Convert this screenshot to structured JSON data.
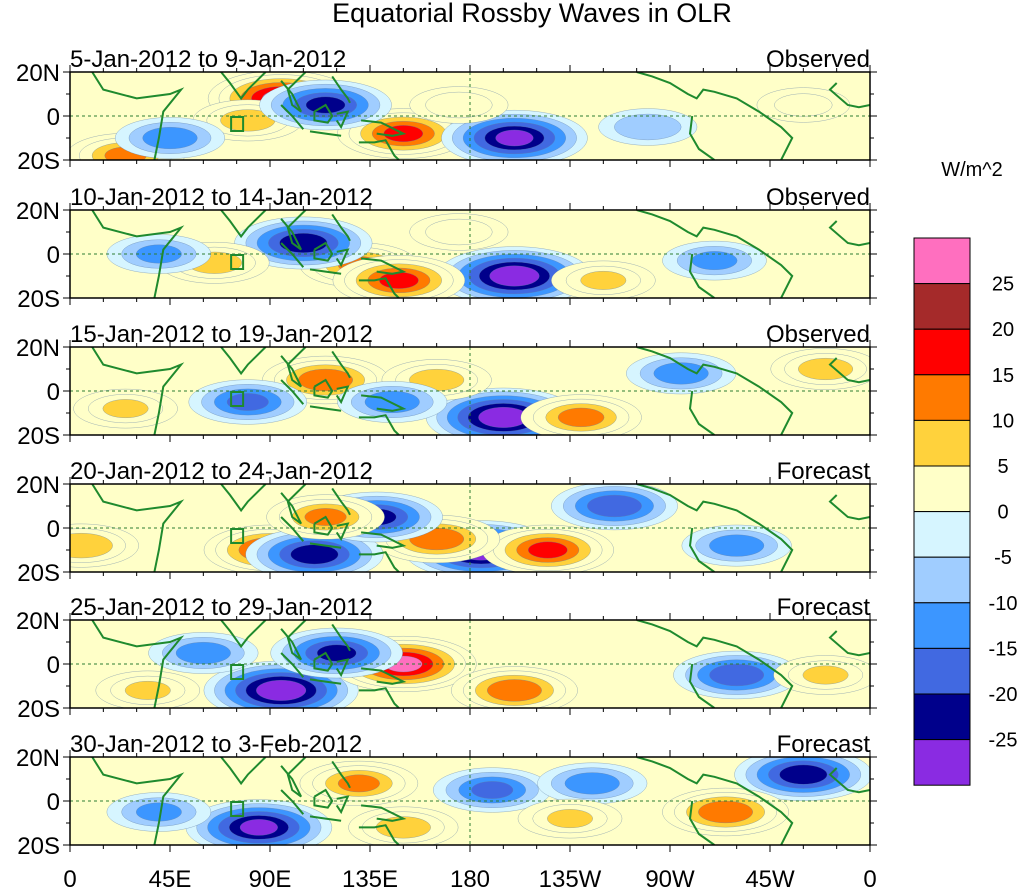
{
  "chart_data": {
    "type": "heatmap",
    "title": "Equatorial Rossby Waves in OLR",
    "units": "W/m^2",
    "x_ticks": [
      "0",
      "45E",
      "90E",
      "135E",
      "180",
      "135W",
      "90W",
      "45W",
      "0"
    ],
    "y_ticks": [
      "20N",
      "0",
      "20S"
    ],
    "colorbar_levels": [
      "25",
      "20",
      "15",
      "10",
      "5",
      "0",
      "-5",
      "-10",
      "-15",
      "-20",
      "-25"
    ],
    "colorbar_colors": [
      "#ff6fbf",
      "#a52a2a",
      "#ff0000",
      "#ff7a00",
      "#ffd23c",
      "#ffffc8",
      "#d6f5ff",
      "#a0cdff",
      "#3c96ff",
      "#4169e1",
      "#00008b",
      "#8a2be2"
    ],
    "panels": [
      {
        "period": "5-Jan-2012 to 9-Jan-2012",
        "kind": "Observed",
        "anomalies": [
          {
            "lon": 95,
            "lat": 8,
            "value": 25
          },
          {
            "lon": 80,
            "lat": -2,
            "value": 12
          },
          {
            "lon": 150,
            "lat": -8,
            "value": 20
          },
          {
            "lon": 25,
            "lat": -18,
            "value": 15
          },
          {
            "lon": 200,
            "lat": -10,
            "value": -25
          },
          {
            "lon": 115,
            "lat": 5,
            "value": -20
          },
          {
            "lon": 45,
            "lat": -10,
            "value": -12
          },
          {
            "lon": 260,
            "lat": -5,
            "value": -8
          },
          {
            "lon": 175,
            "lat": 5,
            "value": 8
          },
          {
            "lon": 330,
            "lat": 5,
            "value": 6
          }
        ]
      },
      {
        "period": "10-Jan-2012 to 14-Jan-2012",
        "kind": "Observed",
        "anomalies": [
          {
            "lon": 200,
            "lat": -10,
            "value": -28
          },
          {
            "lon": 130,
            "lat": -5,
            "value": 15
          },
          {
            "lon": 148,
            "lat": -12,
            "value": 20
          },
          {
            "lon": 105,
            "lat": 5,
            "value": -22
          },
          {
            "lon": 65,
            "lat": -4,
            "value": 12
          },
          {
            "lon": 240,
            "lat": -12,
            "value": 10
          },
          {
            "lon": 175,
            "lat": 10,
            "value": 8
          },
          {
            "lon": 40,
            "lat": 0,
            "value": -10
          },
          {
            "lon": 290,
            "lat": -3,
            "value": -10
          }
        ]
      },
      {
        "period": "15-Jan-2012 to 19-Jan-2012",
        "kind": "Observed",
        "anomalies": [
          {
            "lon": 195,
            "lat": -12,
            "value": -28
          },
          {
            "lon": 230,
            "lat": -12,
            "value": 16
          },
          {
            "lon": 115,
            "lat": 5,
            "value": 18
          },
          {
            "lon": 165,
            "lat": 5,
            "value": 12
          },
          {
            "lon": 145,
            "lat": -5,
            "value": -12
          },
          {
            "lon": 80,
            "lat": -5,
            "value": -15
          },
          {
            "lon": 275,
            "lat": 8,
            "value": -12
          },
          {
            "lon": 340,
            "lat": 10,
            "value": 12
          },
          {
            "lon": 25,
            "lat": -8,
            "value": 10
          }
        ]
      },
      {
        "period": "20-Jan-2012 to 24-Jan-2012",
        "kind": "Forecast",
        "anomalies": [
          {
            "lon": 185,
            "lat": -10,
            "value": -28
          },
          {
            "lon": 215,
            "lat": -10,
            "value": 20
          },
          {
            "lon": 165,
            "lat": -5,
            "value": 18
          },
          {
            "lon": 90,
            "lat": -10,
            "value": 20
          },
          {
            "lon": 110,
            "lat": -12,
            "value": -22
          },
          {
            "lon": 138,
            "lat": 5,
            "value": -20
          },
          {
            "lon": 115,
            "lat": 5,
            "value": 15
          },
          {
            "lon": 5,
            "lat": -8,
            "value": 14
          },
          {
            "lon": 245,
            "lat": 10,
            "value": -18
          },
          {
            "lon": 300,
            "lat": -8,
            "value": -12
          }
        ]
      },
      {
        "period": "25-Jan-2012 to 29-Jan-2012",
        "kind": "Forecast",
        "anomalies": [
          {
            "lon": 95,
            "lat": -12,
            "value": -28
          },
          {
            "lon": 150,
            "lat": 0,
            "value": 25
          },
          {
            "lon": 120,
            "lat": 5,
            "value": -20
          },
          {
            "lon": 200,
            "lat": -12,
            "value": 18
          },
          {
            "lon": 300,
            "lat": -5,
            "value": -18
          },
          {
            "lon": 60,
            "lat": 5,
            "value": -12
          },
          {
            "lon": 35,
            "lat": -12,
            "value": 10
          },
          {
            "lon": 340,
            "lat": -5,
            "value": 10
          }
        ]
      },
      {
        "period": "30-Jan-2012 to 3-Feb-2012",
        "kind": "Forecast",
        "anomalies": [
          {
            "lon": 85,
            "lat": -12,
            "value": -25
          },
          {
            "lon": 130,
            "lat": 8,
            "value": 15
          },
          {
            "lon": 190,
            "lat": 5,
            "value": -15
          },
          {
            "lon": 235,
            "lat": 8,
            "value": -12
          },
          {
            "lon": 330,
            "lat": 12,
            "value": -22
          },
          {
            "lon": 295,
            "lat": -5,
            "value": 18
          },
          {
            "lon": 150,
            "lat": -12,
            "value": 12
          },
          {
            "lon": 225,
            "lat": -8,
            "value": 10
          },
          {
            "lon": 40,
            "lat": -5,
            "value": -10
          }
        ]
      }
    ]
  }
}
